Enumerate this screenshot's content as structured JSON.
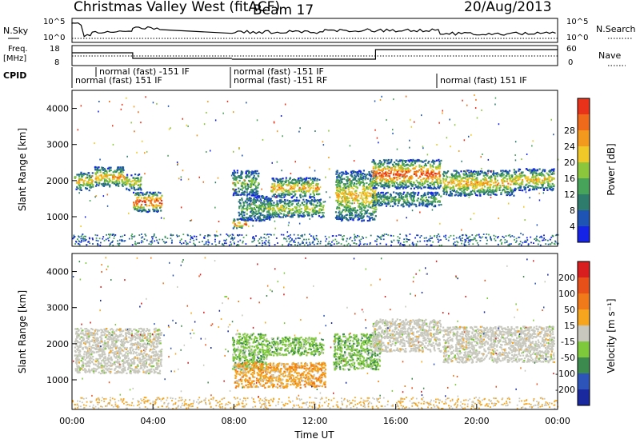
{
  "header": {
    "title": "Christmas Valley West (fitACF)",
    "beam": "Beam 17",
    "date": "20/Aug/2013"
  },
  "top_panels": {
    "nsky_label": "N.Sky",
    "nsky_ticks": [
      "10^5",
      "10^0"
    ],
    "nsearch_label": "N.Search",
    "nsearch_ticks": [
      "10^5",
      "10^0"
    ],
    "freq_label_line1": "Freq.",
    "freq_label_line2": "[MHz]",
    "freq_ticks": [
      "18",
      "8"
    ],
    "nave_label": "Nave",
    "nave_ticks": [
      "60",
      "0"
    ],
    "cpid_label": "CPID",
    "cpid_segments": [
      {
        "row": 1,
        "text": "normal (fast) -151 IF"
      },
      {
        "row": 2,
        "text": "normal (fast) 151 IF"
      },
      {
        "row": 1,
        "text": "normal (fast) -151 IF"
      },
      {
        "row": 2,
        "text": "normal (fast) -151 RF"
      },
      {
        "row": 2,
        "text": "normal (fast) 151 IF"
      }
    ]
  },
  "chart_data": [
    {
      "type": "heatmap",
      "name": "power",
      "ylabel": "Slant Range [km]",
      "ylim": [
        180,
        4500
      ],
      "yticks": [
        1000,
        2000,
        3000,
        4000
      ],
      "xlim": [
        0,
        24
      ],
      "colorbar": {
        "label": "Power [dB]",
        "ticks": [
          "4",
          "8",
          "12",
          "16",
          "20",
          "24",
          "28"
        ],
        "colors": [
          "#1423e6",
          "#1e55b4",
          "#2e7c6c",
          "#48a35a",
          "#8cc63c",
          "#f0c828",
          "#f39a1e",
          "#ef6a1a",
          "#e8321a"
        ]
      },
      "blobs": [
        {
          "t": [
            0.1,
            1.0
          ],
          "r": [
            1750,
            2250
          ],
          "lvl": 0.55
        },
        {
          "t": [
            1.1,
            2.6
          ],
          "r": [
            1850,
            2400
          ],
          "lvl": 0.6
        },
        {
          "t": [
            2.6,
            3.4
          ],
          "r": [
            1750,
            2200
          ],
          "lvl": 0.5
        },
        {
          "t": [
            3.0,
            4.4
          ],
          "r": [
            1150,
            1700
          ],
          "lvl": 0.85
        },
        {
          "t": [
            7.9,
            8.6
          ],
          "r": [
            700,
            950
          ],
          "lvl": 0.85
        },
        {
          "t": [
            7.9,
            9.2
          ],
          "r": [
            1600,
            2300
          ],
          "lvl": 0.35
        },
        {
          "t": [
            8.2,
            9.8
          ],
          "r": [
            900,
            1600
          ],
          "lvl": 0.3
        },
        {
          "t": [
            9.8,
            12.2
          ],
          "r": [
            1550,
            2100
          ],
          "lvl": 0.6
        },
        {
          "t": [
            9.6,
            12.4
          ],
          "r": [
            1000,
            1500
          ],
          "lvl": 0.45
        },
        {
          "t": [
            13.0,
            15.0
          ],
          "r": [
            900,
            2300
          ],
          "lvl": 0.55
        },
        {
          "t": [
            14.8,
            18.2
          ],
          "r": [
            1800,
            2600
          ],
          "lvl": 0.8
        },
        {
          "t": [
            14.8,
            18.2
          ],
          "r": [
            1300,
            1700
          ],
          "lvl": 0.3
        },
        {
          "t": [
            18.3,
            21.8
          ],
          "r": [
            1600,
            2300
          ],
          "lvl": 0.6
        },
        {
          "t": [
            21.8,
            23.8
          ],
          "r": [
            1750,
            2350
          ],
          "lvl": 0.55
        }
      ]
    },
    {
      "type": "heatmap",
      "name": "velocity",
      "ylabel": "Slant Range [km]",
      "xlabel": "Time UT",
      "ylim": [
        180,
        4500
      ],
      "yticks": [
        1000,
        2000,
        3000,
        4000
      ],
      "xlim": [
        0,
        24
      ],
      "xticks": [
        "00:00",
        "04:00",
        "08:00",
        "12:00",
        "16:00",
        "20:00",
        "00:00"
      ],
      "colorbar": {
        "label": "Velocity [m s⁻¹]",
        "ticks": [
          "200",
          "100",
          "50",
          "15",
          "-15",
          "-50",
          "-100",
          "-200"
        ],
        "colors": [
          "#1a2a9e",
          "#2d54b8",
          "#3c8a4e",
          "#7ec83c",
          "#c8c8be",
          "#f5a51e",
          "#f07a1a",
          "#e8501a",
          "#d81e1e"
        ]
      },
      "blobs": [
        {
          "t": [
            0.1,
            4.4
          ],
          "r": [
            1200,
            2450
          ],
          "v": "gray"
        },
        {
          "t": [
            7.9,
            9.6
          ],
          "r": [
            1300,
            2300
          ],
          "v": "green"
        },
        {
          "t": [
            9.6,
            12.4
          ],
          "r": [
            1700,
            2200
          ],
          "v": "green"
        },
        {
          "t": [
            8.0,
            12.5
          ],
          "r": [
            800,
            1500
          ],
          "v": "orange"
        },
        {
          "t": [
            12.9,
            15.2
          ],
          "r": [
            1300,
            2300
          ],
          "v": "green"
        },
        {
          "t": [
            14.8,
            18.2
          ],
          "r": [
            1800,
            2700
          ],
          "v": "gray"
        },
        {
          "t": [
            18.3,
            23.8
          ],
          "r": [
            1500,
            2500
          ],
          "v": "gray"
        }
      ]
    }
  ]
}
